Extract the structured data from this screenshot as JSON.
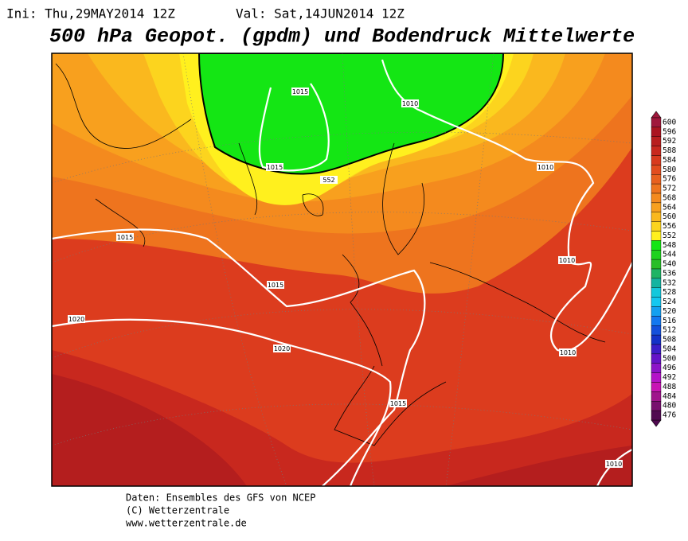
{
  "header": {
    "init": "Ini: Thu,29MAY2014  12Z",
    "valid": "Val: Sat,14JUN2014  12Z"
  },
  "title": "500 hPa Geopot. (gpdm) und Bodendruck Mittelwerte",
  "contour_labels": [
    1015,
    1010,
    1015,
    552,
    1010,
    1015,
    1010,
    1015,
    1020,
    1020,
    1010,
    1015,
    1010
  ],
  "colorbar": {
    "levels": [
      600,
      596,
      592,
      588,
      584,
      580,
      576,
      572,
      568,
      564,
      560,
      556,
      552,
      548,
      544,
      540,
      536,
      532,
      528,
      524,
      520,
      516,
      512,
      508,
      504,
      500,
      496,
      492,
      488,
      484,
      480,
      476
    ],
    "colors": [
      "#a0183c",
      "#aa1420",
      "#b81e1e",
      "#c8281e",
      "#d83a1e",
      "#e24c1e",
      "#e8601e",
      "#ee741e",
      "#f48a1e",
      "#f8a01e",
      "#fab81e",
      "#fcd41e",
      "#fff01e",
      "#14e614",
      "#1ed21e",
      "#28be28",
      "#1eb464",
      "#14b4a0",
      "#14c8dc",
      "#14c8f0",
      "#14a0f0",
      "#1478f0",
      "#1450dc",
      "#1432c8",
      "#3c1ec8",
      "#6414c8",
      "#8c14c8",
      "#b414c8",
      "#c814b4",
      "#a0148c",
      "#780f6e",
      "#500a50"
    ]
  },
  "footer": [
    "Daten: Ensembles des GFS von NCEP",
    "(C) Wetterzentrale",
    "www.wetterzentrale.de"
  ]
}
